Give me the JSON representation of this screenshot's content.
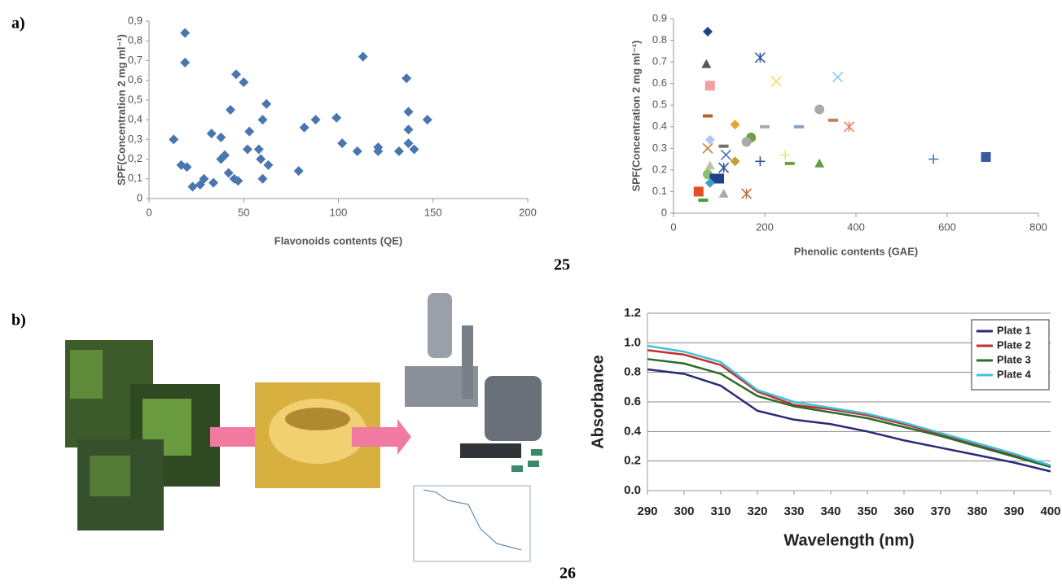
{
  "panel_labels": [
    "a)",
    "b)"
  ],
  "figure_numbers": [
    "25",
    "26"
  ],
  "chart_data": [
    {
      "type": "scatter",
      "x_label": "Flavonoids contents (QE)",
      "y_label": "SPF(Concentration 2 mg ml⁻¹)",
      "x": [
        13,
        17,
        19,
        19,
        20,
        23,
        27,
        29,
        33,
        34,
        38,
        38,
        40,
        42,
        43,
        45,
        46,
        47,
        50,
        52,
        53,
        58,
        59,
        60,
        60,
        62,
        63,
        79,
        82,
        88,
        99,
        102,
        110,
        113,
        121,
        121,
        132,
        136,
        137,
        137,
        137,
        140,
        147
      ],
      "values": [
        0.3,
        0.17,
        0.84,
        0.69,
        0.16,
        0.06,
        0.07,
        0.1,
        0.33,
        0.08,
        0.31,
        0.2,
        0.22,
        0.13,
        0.45,
        0.1,
        0.63,
        0.09,
        0.59,
        0.25,
        0.34,
        0.25,
        0.2,
        0.4,
        0.1,
        0.48,
        0.17,
        0.14,
        0.36,
        0.4,
        0.41,
        0.28,
        0.24,
        0.72,
        0.26,
        0.24,
        0.24,
        0.61,
        0.44,
        0.35,
        0.28,
        0.25,
        0.4
      ],
      "color": "#4a76b0",
      "marker": "diamond",
      "xlim": [
        0,
        200
      ],
      "xticks": [
        0,
        50,
        100,
        150,
        200
      ],
      "ylim": [
        0,
        0.9
      ],
      "yticks": [
        0,
        {
          "value": 0.1,
          "label": "0,1"
        },
        {
          "value": 0.2,
          "label": "0,2"
        },
        {
          "value": 0.3,
          "label": "0,3"
        },
        {
          "value": 0.4,
          "label": "0,4"
        },
        {
          "value": 0.5,
          "label": "0,5"
        },
        {
          "value": 0.6,
          "label": "0,6"
        },
        {
          "value": 0.7,
          "label": "0,7"
        },
        {
          "value": 0.8,
          "label": "0,8"
        },
        {
          "value": 0.9,
          "label": "0,9"
        }
      ],
      "grid": false
    },
    {
      "type": "scatter",
      "x_label": "Phenolic contents (GAE)",
      "y_label": "SPF(Concentration 2 mg ml⁻¹)",
      "x": [
        75,
        72,
        190,
        80,
        225,
        360,
        75,
        320,
        135,
        200,
        275,
        350,
        385,
        170,
        160,
        80,
        75,
        110,
        115,
        135,
        190,
        245,
        255,
        320,
        570,
        685,
        80,
        75,
        90,
        100,
        110,
        80,
        110,
        160,
        55,
        65
      ],
      "values": [
        0.84,
        0.69,
        0.72,
        0.59,
        0.61,
        0.63,
        0.45,
        0.48,
        0.41,
        0.4,
        0.4,
        0.43,
        0.4,
        0.35,
        0.33,
        0.34,
        0.3,
        0.31,
        0.27,
        0.24,
        0.24,
        0.27,
        0.23,
        0.23,
        0.25,
        0.26,
        0.22,
        0.18,
        0.16,
        0.16,
        0.21,
        0.14,
        0.09,
        0.09,
        0.1,
        0.06
      ],
      "colors": [
        "#1f3f8f",
        "#555555",
        "#3a5a9a",
        "#f4a0a0",
        "#f0e060",
        "#8cc8f0",
        "#c06020",
        "#aaaaaa",
        "#f0a030",
        "#aaaaaa",
        "#8aa0c0",
        "#c08060",
        "#f08060",
        "#70a040",
        "#aaaaaa",
        "#b0c8f0",
        "#c08030",
        "#707070",
        "#5070c0",
        "#c0a030",
        "#3050a0",
        "#f0e080",
        "#70a040",
        "#60a040",
        "#4080c0",
        "#3a5aa0",
        "#c0c0a0",
        "#8ac070",
        "#1f3f8f",
        "#1f3f8f",
        "#3050a0",
        "#40a0c0",
        "#aaaaaa",
        "#c07040",
        "#e05020",
        "#40a040"
      ],
      "markers": [
        "diamond",
        "triangle",
        "star",
        "square",
        "x",
        "x",
        "dash",
        "circle",
        "diamond",
        "dash",
        "dash",
        "dash",
        "star",
        "circle",
        "circle",
        "diamond",
        "x",
        "dash",
        "x",
        "diamond",
        "plus",
        "plus",
        "dash",
        "triangle",
        "plus",
        "square",
        "triangle",
        "circle",
        "square",
        "square",
        "star",
        "diamond",
        "triangle",
        "star",
        "square",
        "dash"
      ],
      "xlim": [
        0,
        800
      ],
      "xticks": [
        0,
        200,
        400,
        600,
        800
      ],
      "ylim": [
        0,
        0.9
      ],
      "yticks": [
        0,
        0.1,
        0.2,
        0.3,
        0.4,
        0.5,
        0.6,
        0.7,
        0.8,
        0.9
      ],
      "grid": false
    },
    {
      "type": "line",
      "x_label": "Wavelength (nm)",
      "y_label": "Absorbance",
      "x": [
        290,
        300,
        310,
        320,
        330,
        340,
        350,
        360,
        370,
        380,
        390,
        400
      ],
      "series": [
        {
          "name": "Plate 1",
          "color": "#2a2a7a",
          "values": [
            0.82,
            0.79,
            0.71,
            0.54,
            0.48,
            0.45,
            0.4,
            0.34,
            0.29,
            0.24,
            0.19,
            0.13
          ]
        },
        {
          "name": "Plate 2",
          "color": "#c0302a",
          "values": [
            0.95,
            0.92,
            0.85,
            0.67,
            0.58,
            0.55,
            0.51,
            0.45,
            0.38,
            0.31,
            0.24,
            0.17
          ]
        },
        {
          "name": "Plate 3",
          "color": "#2a6a2a",
          "values": [
            0.89,
            0.86,
            0.79,
            0.64,
            0.57,
            0.53,
            0.49,
            0.43,
            0.37,
            0.3,
            0.23,
            0.16
          ]
        },
        {
          "name": "Plate 4",
          "color": "#40c0e0",
          "values": [
            0.98,
            0.94,
            0.87,
            0.68,
            0.6,
            0.56,
            0.52,
            0.46,
            0.39,
            0.32,
            0.25,
            0.17
          ]
        }
      ],
      "xlim": [
        290,
        400
      ],
      "xticks": [
        290,
        300,
        310,
        320,
        330,
        340,
        350,
        360,
        370,
        380,
        390,
        400
      ],
      "ylim": [
        0,
        1.2
      ],
      "yticks": [
        {
          "value": 0,
          "label": "0.0"
        },
        0.2,
        0.4,
        0.6,
        0.8,
        {
          "value": 1,
          "label": "1.0"
        },
        1.2
      ],
      "grid": true,
      "legend": "upper right"
    }
  ]
}
